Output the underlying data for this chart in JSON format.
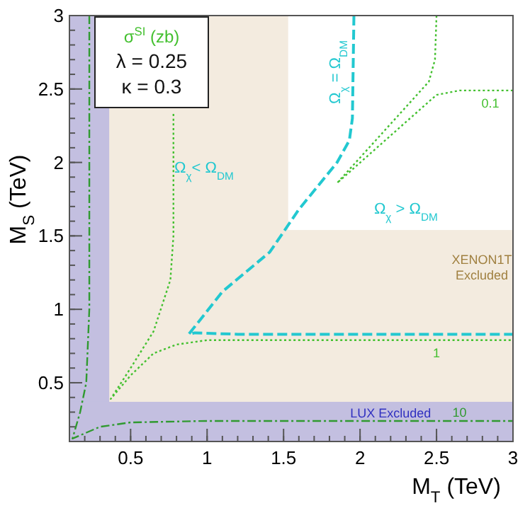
{
  "chart_data": {
    "type": "line",
    "xlabel": "M$_{T}$   (TeV)",
    "ylabel": "M$_{S}$   (TeV)",
    "xlim": [
      0.1,
      3
    ],
    "ylim": [
      0.1,
      3
    ],
    "xticks": [
      0.5,
      1,
      1.5,
      2,
      2.5,
      3
    ],
    "yticks": [
      0.5,
      1,
      1.5,
      2,
      2.5,
      3
    ],
    "grid": false,
    "bands": [
      {
        "axis": "x",
        "from": 0.1,
        "to": 1.53,
        "label": null,
        "color": "#f3ebdf"
      },
      {
        "axis": "y",
        "from": 0.1,
        "to": 1.54,
        "label": "XENON1T Excluded",
        "color": "#f3ebdf"
      },
      {
        "axis": "x",
        "from": 0.1,
        "to": 0.36,
        "label": null,
        "color": "#c3bfe0"
      },
      {
        "axis": "y",
        "from": 0.1,
        "to": 0.37,
        "label": "LUX Excluded",
        "color": "#c3bfe0"
      }
    ],
    "series": [
      {
        "name": "Ω$_{χ}$ = Ω$_{DM}$",
        "color": "#22c8d0",
        "line_style": "dashed",
        "x": [
          1.96,
          1.95,
          1.93,
          1.85,
          1.6,
          1.41,
          1.1,
          0.88,
          0.92,
          1.2,
          3
        ],
        "values": [
          3,
          2.3,
          2.15,
          2.0,
          1.68,
          1.39,
          1.12,
          0.83,
          0.84,
          0.83,
          0.83
        ]
      },
      {
        "name": "0.1",
        "color": "#44c030",
        "line_style": "dotted",
        "x": [
          2.5,
          2.49,
          2.45,
          1.85,
          2.5,
          2.65,
          3
        ],
        "values": [
          3,
          2.7,
          2.55,
          1.86,
          2.46,
          2.49,
          2.49
        ]
      },
      {
        "name": "1",
        "color": "#44c030",
        "line_style": "dotted",
        "x": [
          0.78,
          0.78,
          0.76,
          0.65,
          0.5,
          0.37,
          0.5,
          0.65,
          0.8,
          1.0,
          3
        ],
        "values": [
          2.33,
          1.5,
          1.2,
          0.85,
          0.6,
          0.39,
          0.55,
          0.7,
          0.76,
          0.79,
          0.79
        ]
      },
      {
        "name": "10",
        "color": "#309a30",
        "line_style": "dashed",
        "x": [
          0.23,
          0.23,
          0.21,
          0.17,
          0.12,
          0.3,
          0.5,
          1,
          3
        ],
        "values": [
          3,
          1.0,
          0.5,
          0.3,
          0.12,
          0.2,
          0.23,
          0.24,
          0.24
        ]
      }
    ],
    "annotations": [
      "σ$^{SI}$  (zb)",
      "λ = 0.25",
      "κ = 0.3",
      "Ω$_{χ}$< Ω$_{DM}$",
      "Ω$_{χ}$ > Ω$_{DM}$"
    ]
  }
}
